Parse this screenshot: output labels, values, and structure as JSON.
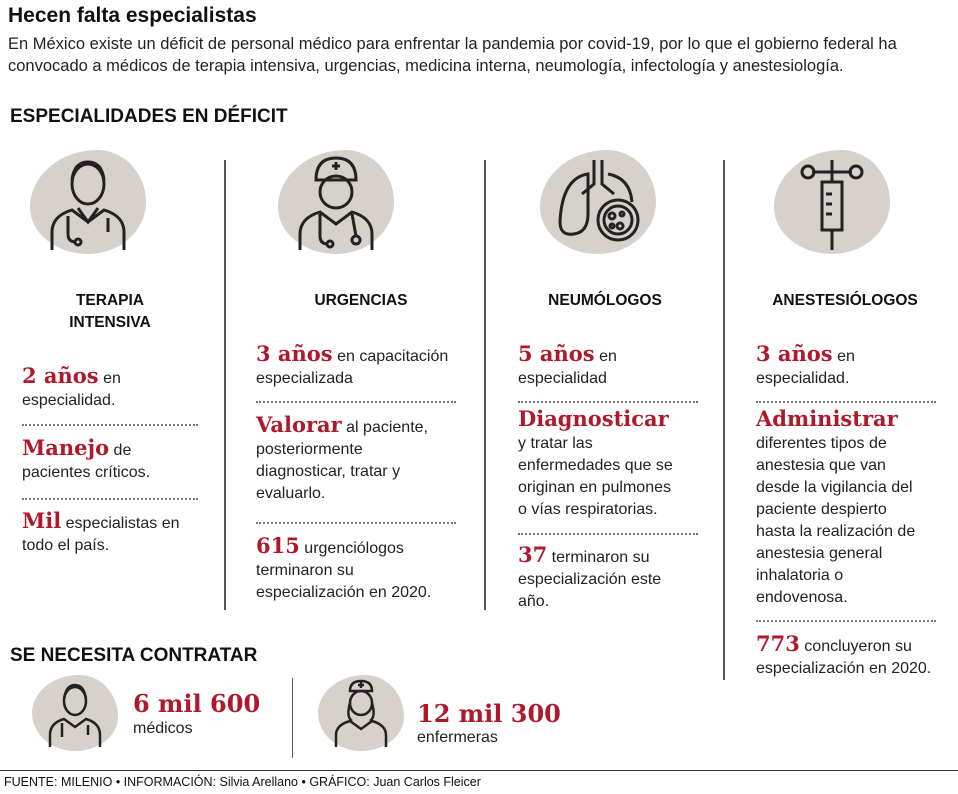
{
  "header": {
    "title": "Hecen falta especialistas",
    "intro": "En México existe un déficit de personal médico para enfrentar la pandemia por covid-19, por lo que el gobierno federal ha convocado a médicos de terapia intensiva, urgencias, medicina interna, neumología, infectología y anestesiología."
  },
  "deficit": {
    "heading": "ESPECIALIDADES EN DÉFICIT",
    "columns": [
      {
        "title_line1": "TERAPIA",
        "title_line2": "INTENSIVA",
        "icon": "doctor-icon",
        "items": [
          {
            "hl": "2 años",
            "text1": " en",
            "text2": "especialidad."
          },
          {
            "hl": "Manejo",
            "text1": " de",
            "text2": "pacientes críticos."
          },
          {
            "hl": "Mil",
            "text1": " especialistas en",
            "text2": "todo el país."
          }
        ]
      },
      {
        "title_line1": "URGENCIAS",
        "icon": "emergency-doctor-icon",
        "items": [
          {
            "hl": "3 años",
            "text1": " en capacitación",
            "text2": "especializada"
          },
          {
            "hl": "Valorar",
            "text1": " al paciente,",
            "text2": "posteriormente",
            "text3": "diagnosticar, tratar y",
            "text4": "evaluarlo."
          },
          {
            "hl": "615",
            "text1": " urgenciólogos",
            "text2": "terminaron su",
            "text3": "especialización en 2020."
          }
        ]
      },
      {
        "title_line1": "NEUMÓLOGOS",
        "icon": "lungs-icon",
        "items": [
          {
            "hl": "5 años",
            "text1": " en",
            "text2": "especialidad"
          },
          {
            "hl": "Diagnosticar",
            "text2": "y tratar las",
            "text3": "enfermedades que se",
            "text4": "originan en pulmones",
            "text5": "o vías respiratorias."
          },
          {
            "hl": "37",
            "text1": " terminaron su",
            "text2": "especialización este",
            "text3": "año."
          }
        ]
      },
      {
        "title_line1": "ANESTESIÓLOGOS",
        "icon": "syringe-icon",
        "items": [
          {
            "hl": "3 años",
            "text1": " en",
            "text2": "especialidad."
          },
          {
            "hl": "Administrar",
            "text2": "diferentes tipos de",
            "text3": "anestesia que van",
            "text4": "desde la vigilancia del",
            "text5": "paciente despierto",
            "text6": "hasta la realización de",
            "text7": "anestesia general",
            "text8": "inhalatoria o",
            "text9": "endovenosa."
          },
          {
            "hl": "773",
            "text1": " concluyeron su",
            "text2": "especialización en 2020."
          }
        ]
      }
    ]
  },
  "hire": {
    "heading": "SE NECESITA CONTRATAR",
    "doctors": {
      "number": "6 mil 600",
      "label": "médicos",
      "icon": "doctor-icon"
    },
    "nurses": {
      "number": "12 mil 300",
      "label": "enfermeras",
      "icon": "nurse-icon"
    }
  },
  "footer": {
    "text": "FUENTE: MILENIO • INFORMACIÓN: Silvia Arellano • GRÁFICO: Juan Carlos Fleicer"
  },
  "colors": {
    "accent": "#b0182c",
    "blob": "#d6d1ca",
    "text": "#1a1a1a"
  }
}
